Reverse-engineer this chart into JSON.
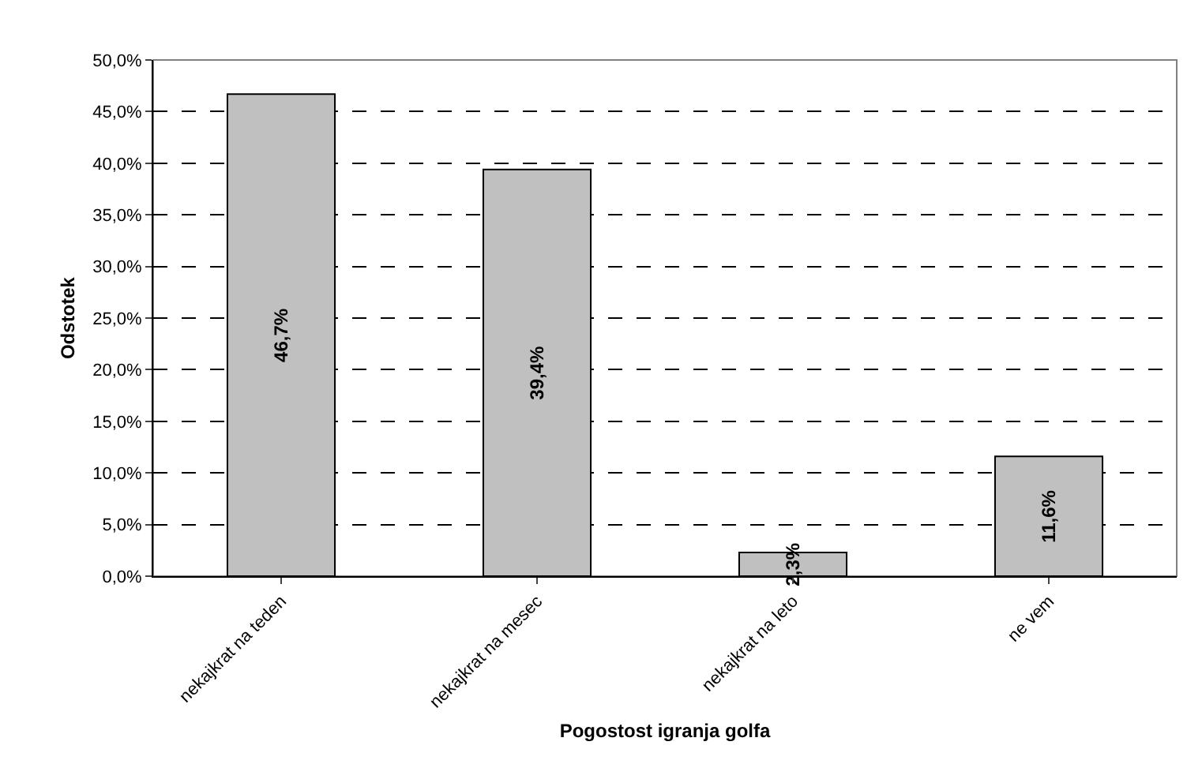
{
  "chart_data": {
    "type": "bar",
    "xlabel": "Pogostost igranja golfa",
    "ylabel": "Odstotek",
    "categories": [
      "nekajkrat na teden",
      "nekajkrat na mesec",
      "nekajkrat na leto",
      "ne vem"
    ],
    "values": [
      46.7,
      39.4,
      2.3,
      11.6
    ],
    "value_labels": [
      "46,7%",
      "39,4%",
      "2,3%",
      "11,6%"
    ],
    "color": "#c0c0c0",
    "ylim": [
      0,
      50
    ],
    "yticks": [
      {
        "value": 0,
        "label": "0,0%"
      },
      {
        "value": 5,
        "label": "5,0%"
      },
      {
        "value": 10,
        "label": "10,0%"
      },
      {
        "value": 15,
        "label": "15,0%"
      },
      {
        "value": 20,
        "label": "20,0%"
      },
      {
        "value": 25,
        "label": "25,0%"
      },
      {
        "value": 30,
        "label": "30,0%"
      },
      {
        "value": 35,
        "label": "35,0%"
      },
      {
        "value": 40,
        "label": "40,0%"
      },
      {
        "value": 45,
        "label": "45,0%"
      },
      {
        "value": 50,
        "label": "50,0%"
      }
    ],
    "grid": "y"
  }
}
